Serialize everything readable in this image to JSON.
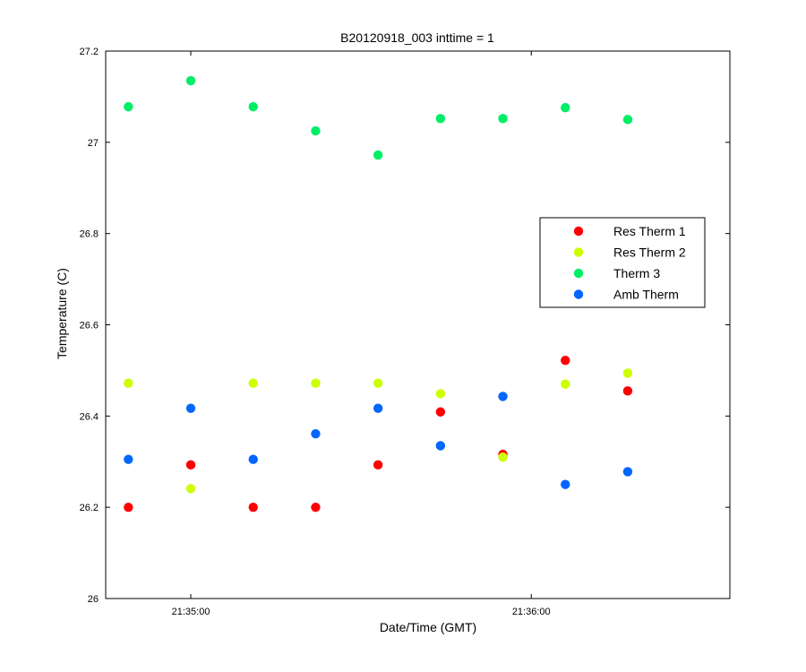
{
  "chart_data": {
    "type": "scatter",
    "title": "B20120918_003 inttime = 1",
    "xlabel": "Date/Time (GMT)",
    "ylabel": "Temperature (C)",
    "xlim": [
      "21:34:45",
      "21:36:35"
    ],
    "ylim": [
      26,
      27.2
    ],
    "x_ticks": [
      {
        "label": "21:35:00",
        "value": "21:35:00"
      },
      {
        "label": "21:36:00",
        "value": "21:36:00"
      }
    ],
    "y_ticks": [
      26,
      26.2,
      26.4,
      26.6,
      26.8,
      27,
      27.2
    ],
    "y_tick_labels": [
      "26",
      "26.2",
      "26.4",
      "26.6",
      "26.8",
      "27",
      "27.2"
    ],
    "grid": false,
    "legend_position": "right",
    "series": [
      {
        "name": "Res Therm 1",
        "color": "#ff0000",
        "x": [
          "21:34:49",
          "21:35:00",
          "21:35:11",
          "21:35:22",
          "21:35:33",
          "21:35:44",
          "21:35:55",
          "21:36:06",
          "21:36:17"
        ],
        "y": [
          26.2,
          26.293,
          26.2,
          26.2,
          26.293,
          26.409,
          26.316,
          26.522,
          26.455
        ]
      },
      {
        "name": "Res Therm 2",
        "color": "#ccff00",
        "x": [
          "21:34:49",
          "21:35:00",
          "21:35:11",
          "21:35:22",
          "21:35:33",
          "21:35:44",
          "21:35:55",
          "21:36:06",
          "21:36:17"
        ],
        "y": [
          26.472,
          26.241,
          26.472,
          26.472,
          26.472,
          26.449,
          26.31,
          26.47,
          26.494
        ]
      },
      {
        "name": "Therm 3",
        "color": "#00ee66",
        "x": [
          "21:34:49",
          "21:35:00",
          "21:35:11",
          "21:35:22",
          "21:35:33",
          "21:35:44",
          "21:35:55",
          "21:36:06",
          "21:36:17"
        ],
        "y": [
          27.078,
          27.135,
          27.078,
          27.025,
          26.972,
          27.052,
          27.052,
          27.076,
          27.05
        ]
      },
      {
        "name": "Amb Therm",
        "color": "#0066ff",
        "x": [
          "21:34:49",
          "21:35:00",
          "21:35:11",
          "21:35:22",
          "21:35:33",
          "21:35:44",
          "21:35:55",
          "21:36:06",
          "21:36:17"
        ],
        "y": [
          26.305,
          26.417,
          26.305,
          26.361,
          26.417,
          26.335,
          26.443,
          26.25,
          26.278
        ]
      }
    ]
  }
}
